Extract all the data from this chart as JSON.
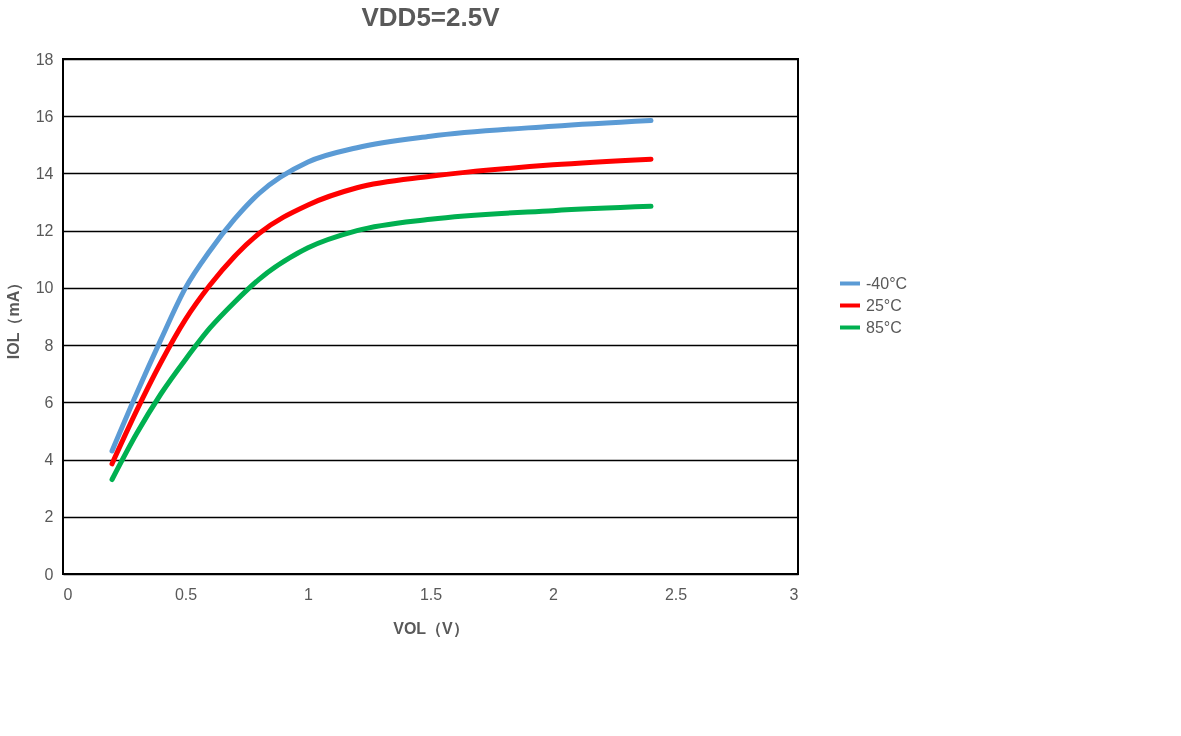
{
  "chart_data": {
    "type": "line",
    "title": "VDD5=2.5V",
    "xlabel": "VOL（V）",
    "ylabel": "IOL（mA）",
    "x": [
      0.2,
      0.3,
      0.4,
      0.5,
      0.6,
      0.7,
      0.8,
      1.0,
      1.2,
      1.5,
      2.0,
      2.4
    ],
    "series": [
      {
        "name": "-40°C",
        "color": "#5b9bd5",
        "values": [
          4.3,
          6.3,
          8.2,
          10.0,
          11.3,
          12.4,
          13.3,
          14.4,
          14.9,
          15.3,
          15.65,
          15.85
        ]
      },
      {
        "name": "25°C",
        "color": "#ff0000",
        "values": [
          3.85,
          5.7,
          7.4,
          8.9,
          10.1,
          11.1,
          11.9,
          12.9,
          13.5,
          13.9,
          14.3,
          14.5
        ]
      },
      {
        "name": "85°C",
        "color": "#00b050",
        "values": [
          3.3,
          4.9,
          6.3,
          7.5,
          8.6,
          9.5,
          10.3,
          11.4,
          12.0,
          12.4,
          12.7,
          12.85
        ]
      }
    ],
    "xlim": [
      0,
      3
    ],
    "xticks": [
      0,
      0.5,
      1,
      1.5,
      2,
      2.5,
      3
    ],
    "ylim": [
      0,
      18
    ],
    "yticks": [
      0,
      2,
      4,
      6,
      8,
      10,
      12,
      14,
      16,
      18
    ],
    "grid": "y",
    "legend": "right",
    "marker": "none",
    "line_style": "solid"
  }
}
